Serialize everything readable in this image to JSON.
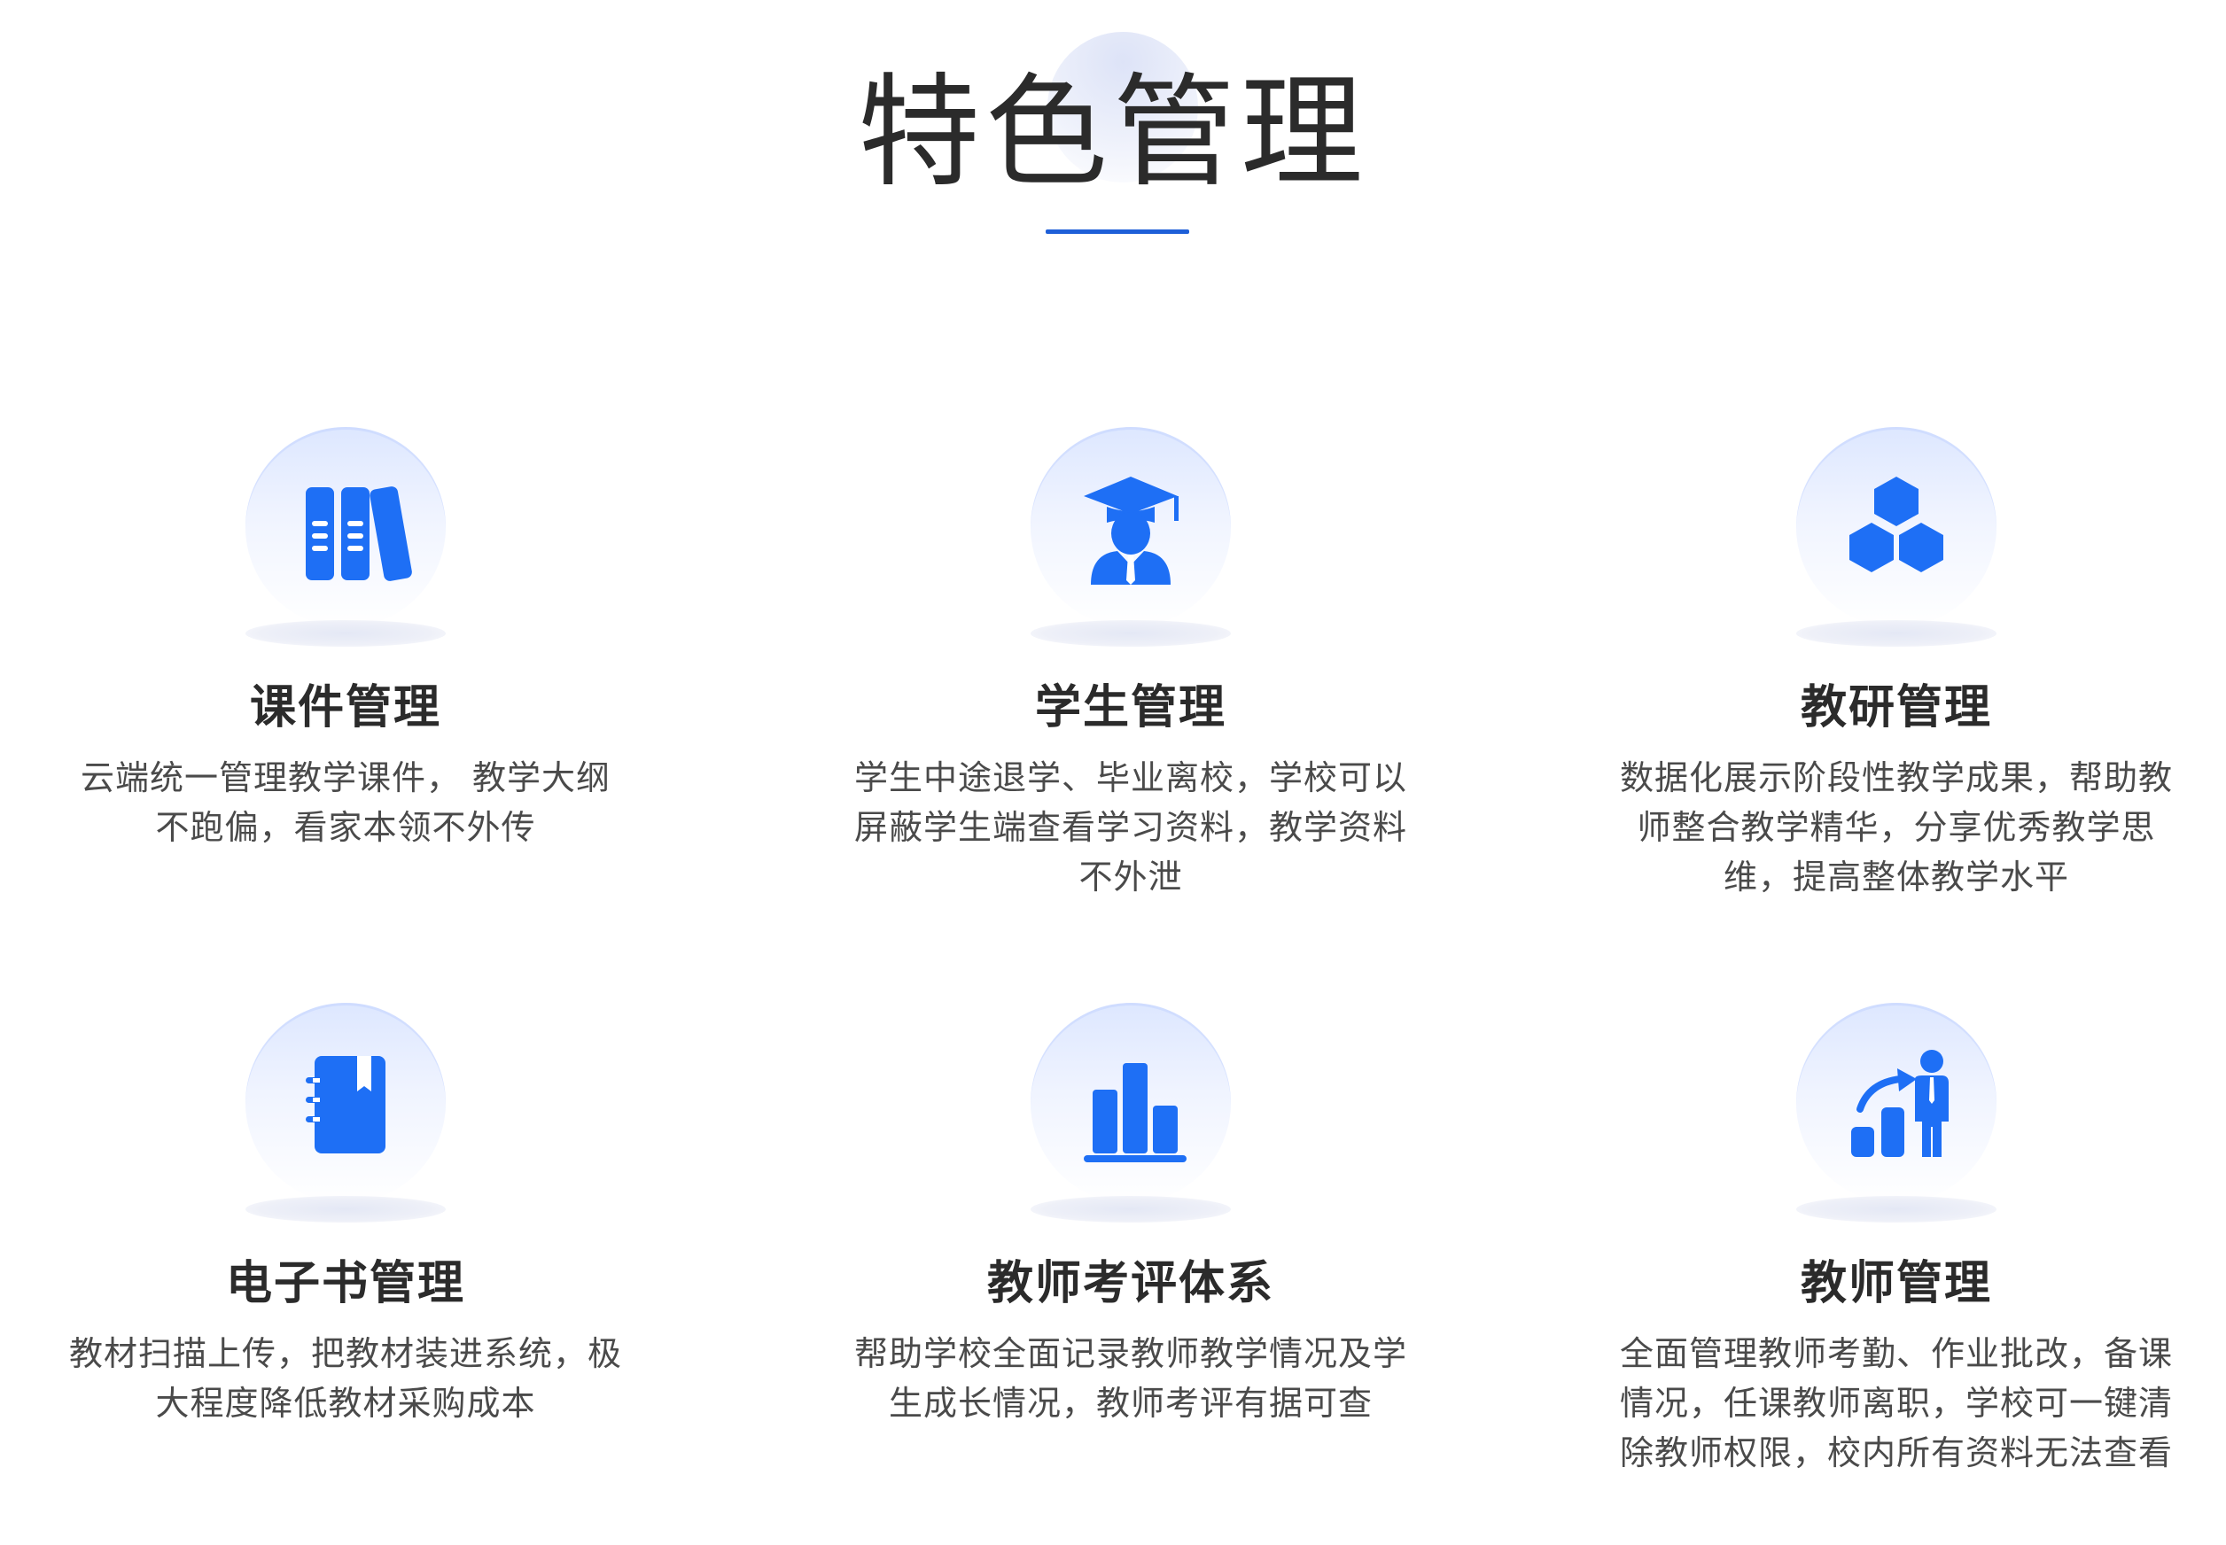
{
  "page": {
    "title": "特色管理",
    "accent_color": "#1E6FF5",
    "underline_color": "#1E5FD8"
  },
  "features": [
    {
      "icon": "books-icon",
      "title": "课件管理",
      "desc_lines": [
        "云端统一管理教学课件， 教学大纲",
        "不跑偏，看家本领不外传"
      ]
    },
    {
      "icon": "graduate-student-icon",
      "title": "学生管理",
      "desc_lines": [
        "学生中途退学、毕业离校，学校可以",
        "屏蔽学生端查看学习资料，教学资料",
        "不外泄"
      ]
    },
    {
      "icon": "hexagons-icon",
      "title": "教研管理",
      "desc_lines": [
        "数据化展示阶段性教学成果，帮助教",
        "师整合教学精华，分享优秀教学思",
        "维，提高整体教学水平"
      ]
    },
    {
      "icon": "notebook-icon",
      "title": "电子书管理",
      "desc_lines": [
        "教材扫描上传，把教材装进系统，极",
        "大程度降低教材采购成本"
      ]
    },
    {
      "icon": "bar-chart-icon",
      "title": "教师考评体系",
      "desc_lines": [
        "帮助学校全面记录教师教学情况及学",
        "生成长情况，教师考评有据可查"
      ]
    },
    {
      "icon": "teacher-growth-icon",
      "title": "教师管理",
      "desc_lines": [
        "全面管理教师考勤、作业批改，备课",
        "情况，任课教师离职，学校可一键清",
        "除教师权限，校内所有资料无法查看"
      ]
    }
  ]
}
